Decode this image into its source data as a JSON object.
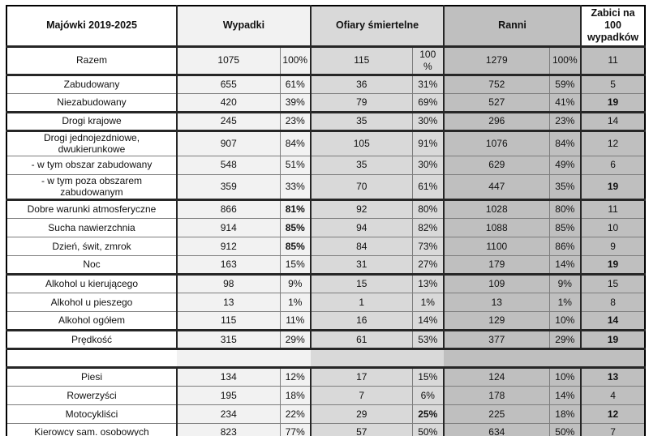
{
  "table": {
    "corner_header": "Majówki 2019-2025",
    "col_groups": [
      {
        "label": "Wypadki"
      },
      {
        "label": "Ofiary śmiertelne"
      },
      {
        "label": "Ranni"
      },
      {
        "label": "Zabici na\n100\nwypadków"
      }
    ],
    "rows": [
      {
        "label": "Razem",
        "cells": [
          "1075",
          "100%",
          "115",
          "100\n%",
          "1279",
          "100%",
          "11"
        ],
        "bold": [],
        "sep": true,
        "is_total": true
      },
      {
        "label": "Zabudowany",
        "cells": [
          "655",
          "61%",
          "36",
          "31%",
          "752",
          "59%",
          "5"
        ],
        "bold": [],
        "sep": true
      },
      {
        "label": "Niezabudowany",
        "cells": [
          "420",
          "39%",
          "79",
          "69%",
          "527",
          "41%",
          "19"
        ],
        "bold": [
          6
        ]
      },
      {
        "label": "Drogi krajowe",
        "cells": [
          "245",
          "23%",
          "35",
          "30%",
          "296",
          "23%",
          "14"
        ],
        "bold": [],
        "sep": true
      },
      {
        "label": "Drogi jednojezdniowe, dwukierunkowe",
        "cells": [
          "907",
          "84%",
          "105",
          "91%",
          "1076",
          "84%",
          "12"
        ],
        "bold": [],
        "sep": true
      },
      {
        "label": "- w tym obszar zabudowany",
        "cells": [
          "548",
          "51%",
          "35",
          "30%",
          "629",
          "49%",
          "6"
        ],
        "bold": []
      },
      {
        "label": "- w tym poza obszarem zabudowanym",
        "cells": [
          "359",
          "33%",
          "70",
          "61%",
          "447",
          "35%",
          "19"
        ],
        "bold": [
          6
        ]
      },
      {
        "label": "Dobre warunki atmosferyczne",
        "cells": [
          "866",
          "81%",
          "92",
          "80%",
          "1028",
          "80%",
          "11"
        ],
        "bold": [
          1
        ],
        "sep": true
      },
      {
        "label": "Sucha nawierzchnia",
        "cells": [
          "914",
          "85%",
          "94",
          "82%",
          "1088",
          "85%",
          "10"
        ],
        "bold": [
          1
        ]
      },
      {
        "label": "Dzień, świt, zmrok",
        "cells": [
          "912",
          "85%",
          "84",
          "73%",
          "1100",
          "86%",
          "9"
        ],
        "bold": [
          1
        ]
      },
      {
        "label": "Noc",
        "cells": [
          "163",
          "15%",
          "31",
          "27%",
          "179",
          "14%",
          "19"
        ],
        "bold": [
          6
        ]
      },
      {
        "label": "Alkohol u kierującego",
        "cells": [
          "98",
          "9%",
          "15",
          "13%",
          "109",
          "9%",
          "15"
        ],
        "bold": [],
        "sep": true
      },
      {
        "label": "Alkohol u pieszego",
        "cells": [
          "13",
          "1%",
          "1",
          "1%",
          "13",
          "1%",
          "8"
        ],
        "bold": []
      },
      {
        "label": "Alkohol ogółem",
        "cells": [
          "115",
          "11%",
          "16",
          "14%",
          "129",
          "10%",
          "14"
        ],
        "bold": [
          6
        ]
      },
      {
        "label": "Prędkość",
        "cells": [
          "315",
          "29%",
          "61",
          "53%",
          "377",
          "29%",
          "19"
        ],
        "bold": [
          6
        ],
        "sep": true
      },
      {
        "empty": true,
        "sep": true
      },
      {
        "label": "Piesi",
        "cells": [
          "134",
          "12%",
          "17",
          "15%",
          "124",
          "10%",
          "13"
        ],
        "bold": [
          6
        ],
        "sep": true
      },
      {
        "label": "Rowerzyści",
        "cells": [
          "195",
          "18%",
          "7",
          "6%",
          "178",
          "14%",
          "4"
        ],
        "bold": []
      },
      {
        "label": "Motocykliści",
        "cells": [
          "234",
          "22%",
          "29",
          "25%",
          "225",
          "18%",
          "12"
        ],
        "bold": [
          3,
          6
        ]
      },
      {
        "label": "Kierowcy sam. osobowych",
        "cells": [
          "823",
          "77%",
          "57",
          "50%",
          "634",
          "50%",
          "7"
        ],
        "bold": []
      }
    ]
  },
  "colors": {
    "wypadki_bg": "#f2f2f2",
    "ofiary_bg": "#d9d9d9",
    "ranni_bg": "#bfbfbf",
    "zabici_bg": "#bfbfbf",
    "grid_thin": "#7d7d7d",
    "grid_thick": "#262626"
  }
}
